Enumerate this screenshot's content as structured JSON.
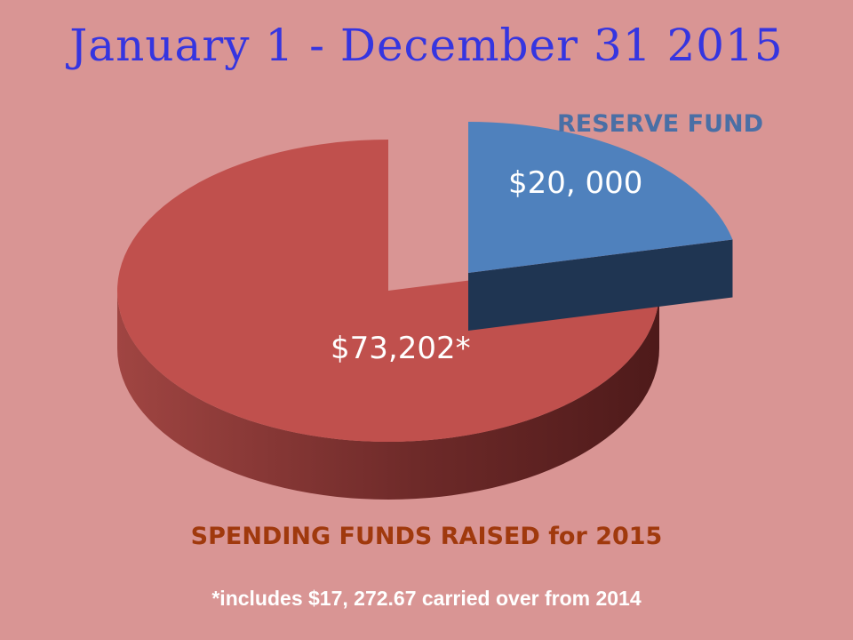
{
  "title": "January 1 - December 31 2015",
  "colors": {
    "background": "#d99594",
    "spending_top": "#c0504d",
    "reserve_top": "#4f81bd",
    "title": "#3535e0",
    "reserve_label": "#4a6fa5",
    "spending_label": "#a0390d"
  },
  "chart_data": {
    "type": "pie",
    "style": "3d-exploded",
    "slices": [
      {
        "label": "SPENDING FUNDS  RAISED for 2015",
        "value": 73202,
        "value_label": "$73,202*",
        "color": "#c0504d"
      },
      {
        "label": "RESERVE FUND",
        "value": 20000,
        "value_label": "$20, 000",
        "color": "#4f81bd"
      }
    ]
  },
  "labels": {
    "reserve_fund": "RESERVE FUND",
    "spending_funds": "SPENDING FUNDS  RAISED for 2015"
  },
  "footnote": "*includes $17, 272.67 carried over from 2014"
}
